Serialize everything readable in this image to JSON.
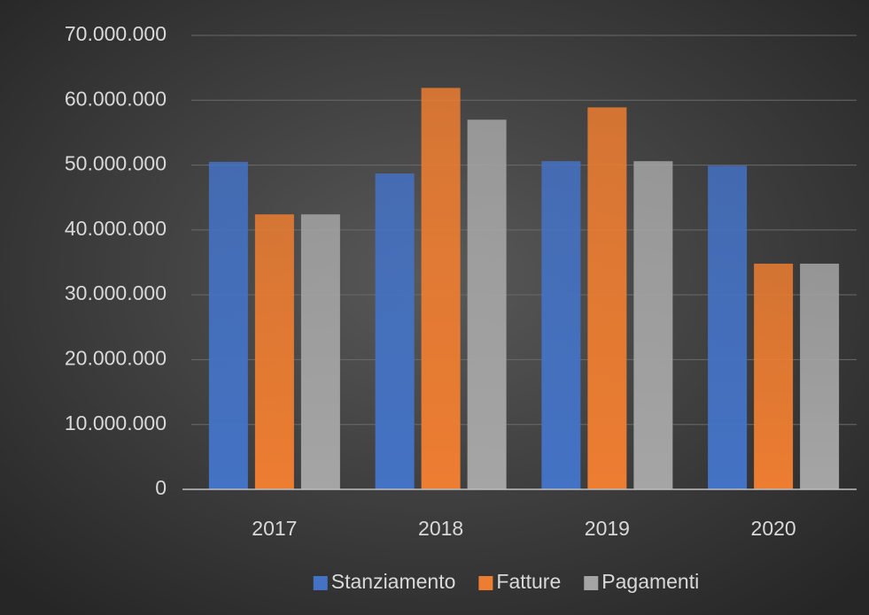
{
  "chart_data": {
    "type": "bar",
    "categories": [
      "2017",
      "2018",
      "2019",
      "2020"
    ],
    "series": [
      {
        "name": "Stanziamento",
        "color": "#4472c4",
        "values": [
          50500000,
          48700000,
          50600000,
          49900000
        ]
      },
      {
        "name": "Fatture",
        "color": "#ed7d31",
        "values": [
          42400000,
          61900000,
          58900000,
          34800000
        ]
      },
      {
        "name": "Pagamenti",
        "color": "#a5a5a5",
        "values": [
          42400000,
          57000000,
          50600000,
          34800000
        ]
      }
    ],
    "ylim": [
      0,
      70000000
    ],
    "yticks": [
      0,
      {
        "value": 10000000,
        "label": "10.000.000"
      },
      {
        "value": 20000000,
        "label": "20.000.000"
      },
      {
        "value": 30000000,
        "label": "30.000.000"
      },
      {
        "value": 40000000,
        "label": "40.000.000"
      },
      {
        "value": 50000000,
        "label": "50.000.000"
      },
      {
        "value": 60000000,
        "label": "60.000.000"
      },
      {
        "value": 70000000,
        "label": "70.000.000"
      }
    ],
    "grid": true,
    "legend": "bottom"
  }
}
